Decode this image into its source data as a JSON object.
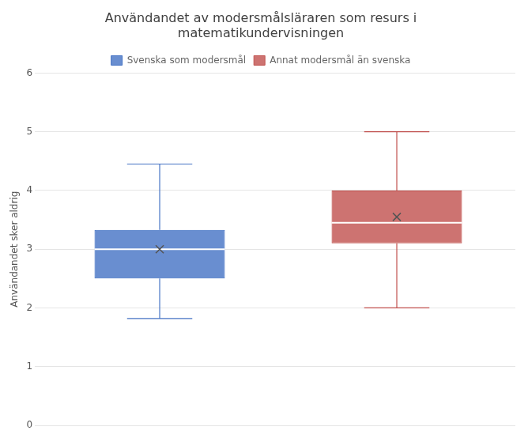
{
  "chart_data": {
    "type": "box",
    "title": "Användandet av modersmålsläraren som resurs i\nmatematikundervisningen",
    "ylabel": "Användandet sker aldrig",
    "series": [
      {
        "name": "Svenska som modersmål",
        "color": "#4472c4",
        "whislo": 1.82,
        "q1": 2.5,
        "med": 3.0,
        "q3": 3.33,
        "whishi": 4.45,
        "mean": 3.0
      },
      {
        "name": "Annat modersmål än svenska",
        "color": "#c0504d",
        "whislo": 2.0,
        "q1": 3.1,
        "med": 3.45,
        "q3": 4.0,
        "whishi": 5.0,
        "mean": 3.55
      }
    ],
    "ylim": [
      0,
      6
    ],
    "yticks": [
      0,
      1,
      2,
      3,
      4,
      5,
      6
    ],
    "grid": true,
    "legend": "top",
    "tick_labels": "y"
  }
}
